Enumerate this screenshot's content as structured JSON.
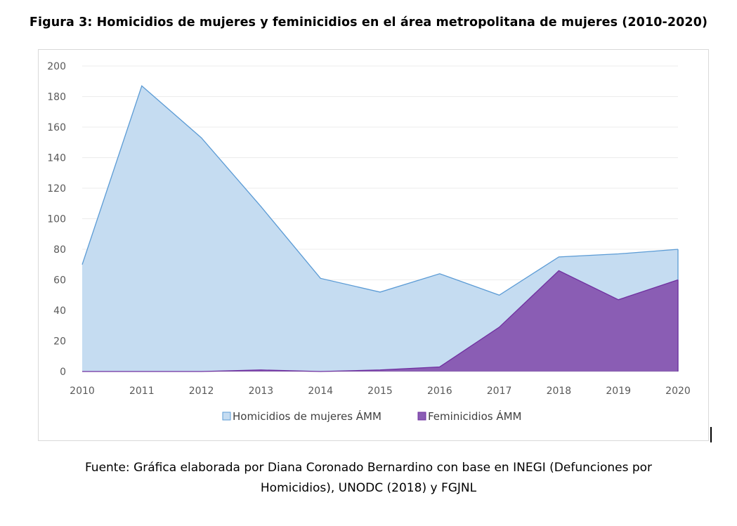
{
  "figure_title": "Figura 3: Homicidios de mujeres y feminicidios en el área metropolitana de mujeres (2010-2020)",
  "source_note": {
    "line1": "Fuente: Gráfica elaborada por Diana Coronado Bernardino con base en INEGI (Defunciones por",
    "line2": "Homicidios), UNODC (2018) y FGJNL"
  },
  "colors": {
    "homicidios_fill": "#c5dcf1",
    "homicidios_line": "#5b9bd5",
    "feminicidios_fill": "#8a5db4",
    "feminicidios_line": "#7030a0",
    "grid": "#ececec"
  },
  "chart_data": {
    "type": "area",
    "title": "",
    "xlabel": "",
    "ylabel": "",
    "categories": [
      "2010",
      "2011",
      "2012",
      "2013",
      "2014",
      "2015",
      "2016",
      "2017",
      "2018",
      "2019",
      "2020"
    ],
    "series": [
      {
        "name": "Homicidios de mujeres ÁMM",
        "values": [
          70,
          187,
          153,
          108,
          61,
          52,
          64,
          50,
          75,
          77,
          80
        ]
      },
      {
        "name": "Feminicidios ÁMM",
        "values": [
          0,
          0,
          0,
          1,
          0,
          1,
          3,
          29,
          66,
          47,
          60
        ]
      }
    ],
    "ylim": [
      0,
      200
    ],
    "yticks": [
      0,
      20,
      40,
      60,
      80,
      100,
      120,
      140,
      160,
      180,
      200
    ],
    "grid": true,
    "legend_position": "bottom"
  }
}
